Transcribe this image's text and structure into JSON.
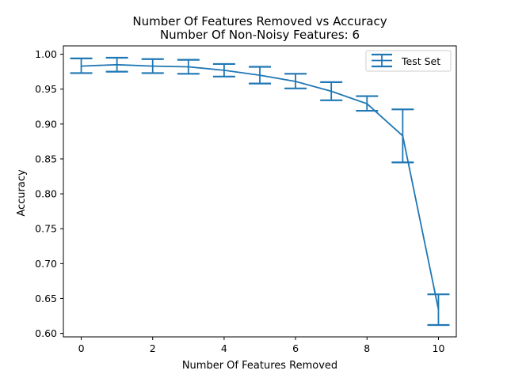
{
  "chart_data": {
    "type": "line",
    "title": "Number Of Features Removed vs Accuracy",
    "subtitle": "Number Of Non-Noisy Features: 6",
    "xlabel": "Number Of Features Removed",
    "ylabel": "Accuracy",
    "xlim": [
      -0.5,
      10.5
    ],
    "ylim": [
      0.595,
      1.012
    ],
    "xticks": [
      "0",
      "2",
      "4",
      "6",
      "8",
      "10"
    ],
    "yticks": [
      "0.60",
      "0.65",
      "0.70",
      "0.75",
      "0.80",
      "0.85",
      "0.90",
      "0.95",
      "1.00"
    ],
    "grid": false,
    "legend_position": "top-right",
    "series": [
      {
        "name": "Test Set",
        "color": "#1f77b4",
        "x": [
          0,
          1,
          2,
          3,
          4,
          5,
          6,
          7,
          8,
          9,
          10
        ],
        "y": [
          0.983,
          0.985,
          0.983,
          0.982,
          0.977,
          0.97,
          0.961,
          0.947,
          0.929,
          0.883,
          0.634
        ],
        "err_low": [
          0.973,
          0.975,
          0.973,
          0.972,
          0.968,
          0.958,
          0.951,
          0.934,
          0.919,
          0.845,
          0.612
        ],
        "err_high": [
          0.994,
          0.995,
          0.993,
          0.992,
          0.986,
          0.982,
          0.972,
          0.96,
          0.94,
          0.921,
          0.656
        ]
      }
    ]
  }
}
